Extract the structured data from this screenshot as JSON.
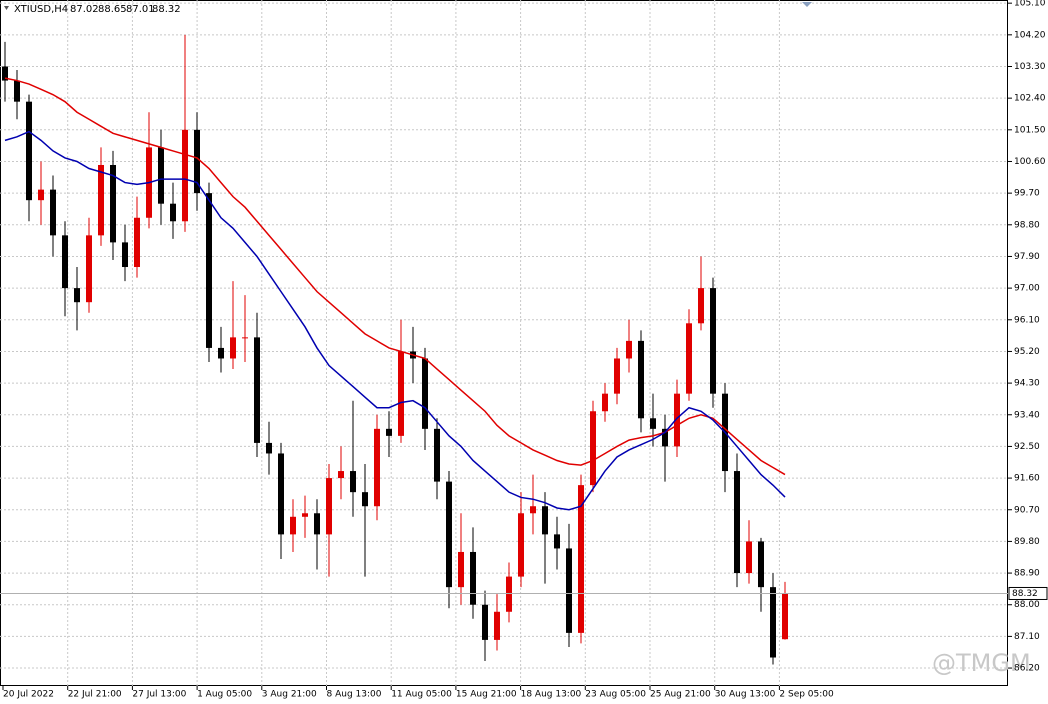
{
  "chart_data": {
    "type": "candlestick",
    "title": "XTIUSD,H4",
    "watermark": "@TMGM",
    "up_color": "#e00000",
    "down_color": "#000000",
    "ylim": [
      85.69,
      105.19
    ],
    "yticks": [
      {
        "value": 105.1,
        "label": "105.10"
      },
      {
        "value": 104.2,
        "label": "104.20"
      },
      {
        "value": 103.3,
        "label": "103.30"
      },
      {
        "value": 102.4,
        "label": "102.40"
      },
      {
        "value": 101.5,
        "label": "101.50"
      },
      {
        "value": 100.6,
        "label": "100.60"
      },
      {
        "value": 99.7,
        "label": "99.70"
      },
      {
        "value": 98.8,
        "label": "98.80"
      },
      {
        "value": 97.9,
        "label": "97.90"
      },
      {
        "value": 97,
        "label": "97.00"
      },
      {
        "value": 96.1,
        "label": "96.10"
      },
      {
        "value": 95.2,
        "label": "95.20"
      },
      {
        "value": 94.3,
        "label": "94.30"
      },
      {
        "value": 93.4,
        "label": "93.40"
      },
      {
        "value": 92.5,
        "label": "92.50"
      },
      {
        "value": 91.6,
        "label": "91.60"
      },
      {
        "value": 90.7,
        "label": "90.70"
      },
      {
        "value": 89.8,
        "label": "89.80"
      },
      {
        "value": 88.9,
        "label": "88.90"
      },
      {
        "value": 88,
        "label": "88.00"
      },
      {
        "value": 87.1,
        "label": "87.10"
      },
      {
        "value": 86.2,
        "label": "86.20"
      }
    ],
    "x_labels": [
      "20 Jul 2022",
      "22 Jul 21:00",
      "27 Jul 13:00",
      "1 Aug 05:00",
      "3 Aug 21:00",
      "8 Aug 13:00",
      "11 Aug 05:00",
      "15 Aug 21:00",
      "18 Aug 13:00",
      "23 Aug 05:00",
      "25 Aug 21:00",
      "30 Aug 13:00",
      "2 Sep 05:00"
    ],
    "open": [
      103.3,
      102.9,
      102.3,
      99.5,
      99.8,
      98.5,
      97.0,
      96.6,
      98.5,
      100.5,
      98.3,
      97.6,
      99.0,
      101.0,
      99.4,
      98.9,
      101.5,
      99.7,
      95.3,
      95.0,
      95.6,
      95.6,
      92.6,
      92.3,
      90.0,
      90.5,
      90.6,
      90.0,
      91.6,
      91.8,
      91.2,
      90.8,
      93.0,
      92.8,
      95.2,
      95.0,
      93.0,
      91.5,
      88.5,
      89.5,
      88.0,
      87.0,
      87.8,
      88.8,
      90.6,
      90.8,
      90.0,
      89.6,
      87.2,
      91.4,
      93.5,
      94.0,
      95.0,
      95.5,
      93.3,
      93.0,
      92.5,
      94.0,
      96.0,
      97.0,
      94.0,
      91.8,
      88.9,
      89.8,
      88.5,
      87.02
    ],
    "high": [
      104.0,
      103.2,
      102.5,
      100.6,
      100.2,
      98.9,
      97.6,
      99.0,
      101.0,
      100.9,
      98.8,
      99.6,
      102.0,
      101.5,
      100.0,
      104.2,
      102.0,
      100.0,
      95.9,
      97.2,
      96.8,
      96.3,
      93.2,
      92.6,
      91.0,
      91.1,
      91.0,
      92.0,
      92.5,
      93.8,
      92.0,
      93.4,
      93.5,
      96.1,
      95.9,
      95.3,
      93.3,
      91.8,
      90.6,
      90.2,
      88.4,
      88.3,
      89.2,
      91.2,
      91.7,
      91.2,
      90.5,
      90.3,
      91.7,
      93.8,
      94.3,
      95.3,
      96.1,
      95.8,
      94.0,
      93.4,
      94.4,
      96.4,
      97.9,
      97.3,
      94.3,
      92.3,
      90.4,
      89.9,
      88.9,
      88.65
    ],
    "low": [
      102.3,
      101.8,
      98.9,
      98.8,
      97.9,
      96.2,
      95.8,
      96.3,
      98.2,
      97.8,
      97.2,
      97.3,
      98.7,
      98.8,
      98.4,
      98.6,
      99.2,
      94.9,
      94.6,
      94.7,
      94.9,
      92.2,
      91.7,
      89.3,
      89.5,
      89.9,
      89.0,
      88.8,
      91.0,
      90.5,
      88.8,
      90.4,
      92.2,
      92.6,
      94.3,
      92.4,
      91.0,
      87.9,
      88.0,
      87.6,
      86.4,
      86.7,
      87.5,
      88.5,
      90.0,
      88.6,
      89.0,
      86.8,
      86.9,
      91.2,
      93.2,
      93.7,
      94.6,
      92.9,
      92.5,
      91.5,
      92.2,
      93.8,
      95.8,
      93.6,
      91.2,
      88.5,
      88.6,
      87.8,
      86.3,
      87.01
    ],
    "close": [
      102.9,
      102.3,
      99.5,
      99.8,
      98.5,
      97.0,
      96.6,
      98.5,
      100.5,
      98.3,
      97.6,
      99.0,
      101.0,
      99.4,
      98.9,
      101.5,
      99.7,
      95.3,
      95.0,
      95.6,
      95.6,
      92.6,
      92.3,
      90.0,
      90.5,
      90.6,
      90.0,
      91.6,
      91.8,
      91.2,
      90.8,
      93.0,
      92.8,
      95.2,
      95.0,
      93.0,
      91.5,
      88.5,
      89.5,
      88.0,
      87.0,
      87.8,
      88.8,
      90.6,
      90.8,
      90.0,
      89.6,
      87.2,
      91.4,
      93.5,
      94.0,
      95.0,
      95.5,
      93.3,
      93.0,
      92.5,
      94.0,
      96.0,
      97.0,
      94.0,
      91.8,
      88.9,
      89.8,
      88.5,
      86.5,
      88.32
    ],
    "series": [
      {
        "color": "#e00000",
        "values": [
          102.97,
          102.9,
          102.8,
          102.65,
          102.5,
          102.3,
          102.0,
          101.8,
          101.6,
          101.4,
          101.3,
          101.2,
          101.1,
          101.0,
          100.9,
          100.8,
          100.7,
          100.4,
          100.0,
          99.6,
          99.3,
          98.9,
          98.5,
          98.1,
          97.7,
          97.3,
          96.9,
          96.6,
          96.3,
          96.0,
          95.7,
          95.5,
          95.3,
          95.2,
          95.1,
          95.0,
          94.7,
          94.4,
          94.1,
          93.8,
          93.5,
          93.1,
          92.8,
          92.6,
          92.4,
          92.25,
          92.1,
          92.0,
          91.97,
          92.1,
          92.3,
          92.5,
          92.68,
          92.75,
          92.8,
          92.9,
          93.1,
          93.3,
          93.4,
          93.3,
          93.0,
          92.7,
          92.4,
          92.1,
          91.9,
          91.7
        ]
      },
      {
        "color": "#0000b0",
        "values": [
          101.2,
          101.3,
          101.45,
          101.2,
          100.9,
          100.7,
          100.6,
          100.4,
          100.3,
          100.2,
          100.0,
          99.95,
          100.0,
          100.1,
          100.1,
          100.1,
          100.0,
          99.5,
          99.0,
          98.7,
          98.3,
          97.9,
          97.4,
          96.9,
          96.4,
          95.9,
          95.3,
          94.8,
          94.5,
          94.2,
          93.9,
          93.6,
          93.6,
          93.75,
          93.8,
          93.6,
          93.2,
          92.8,
          92.5,
          92.1,
          91.8,
          91.5,
          91.2,
          91.05,
          91.0,
          90.9,
          90.75,
          90.7,
          90.8,
          91.3,
          91.8,
          92.2,
          92.4,
          92.55,
          92.7,
          92.9,
          93.3,
          93.6,
          93.5,
          93.25,
          92.9,
          92.5,
          92.1,
          91.7,
          91.4,
          91.06
        ]
      }
    ]
  }
}
